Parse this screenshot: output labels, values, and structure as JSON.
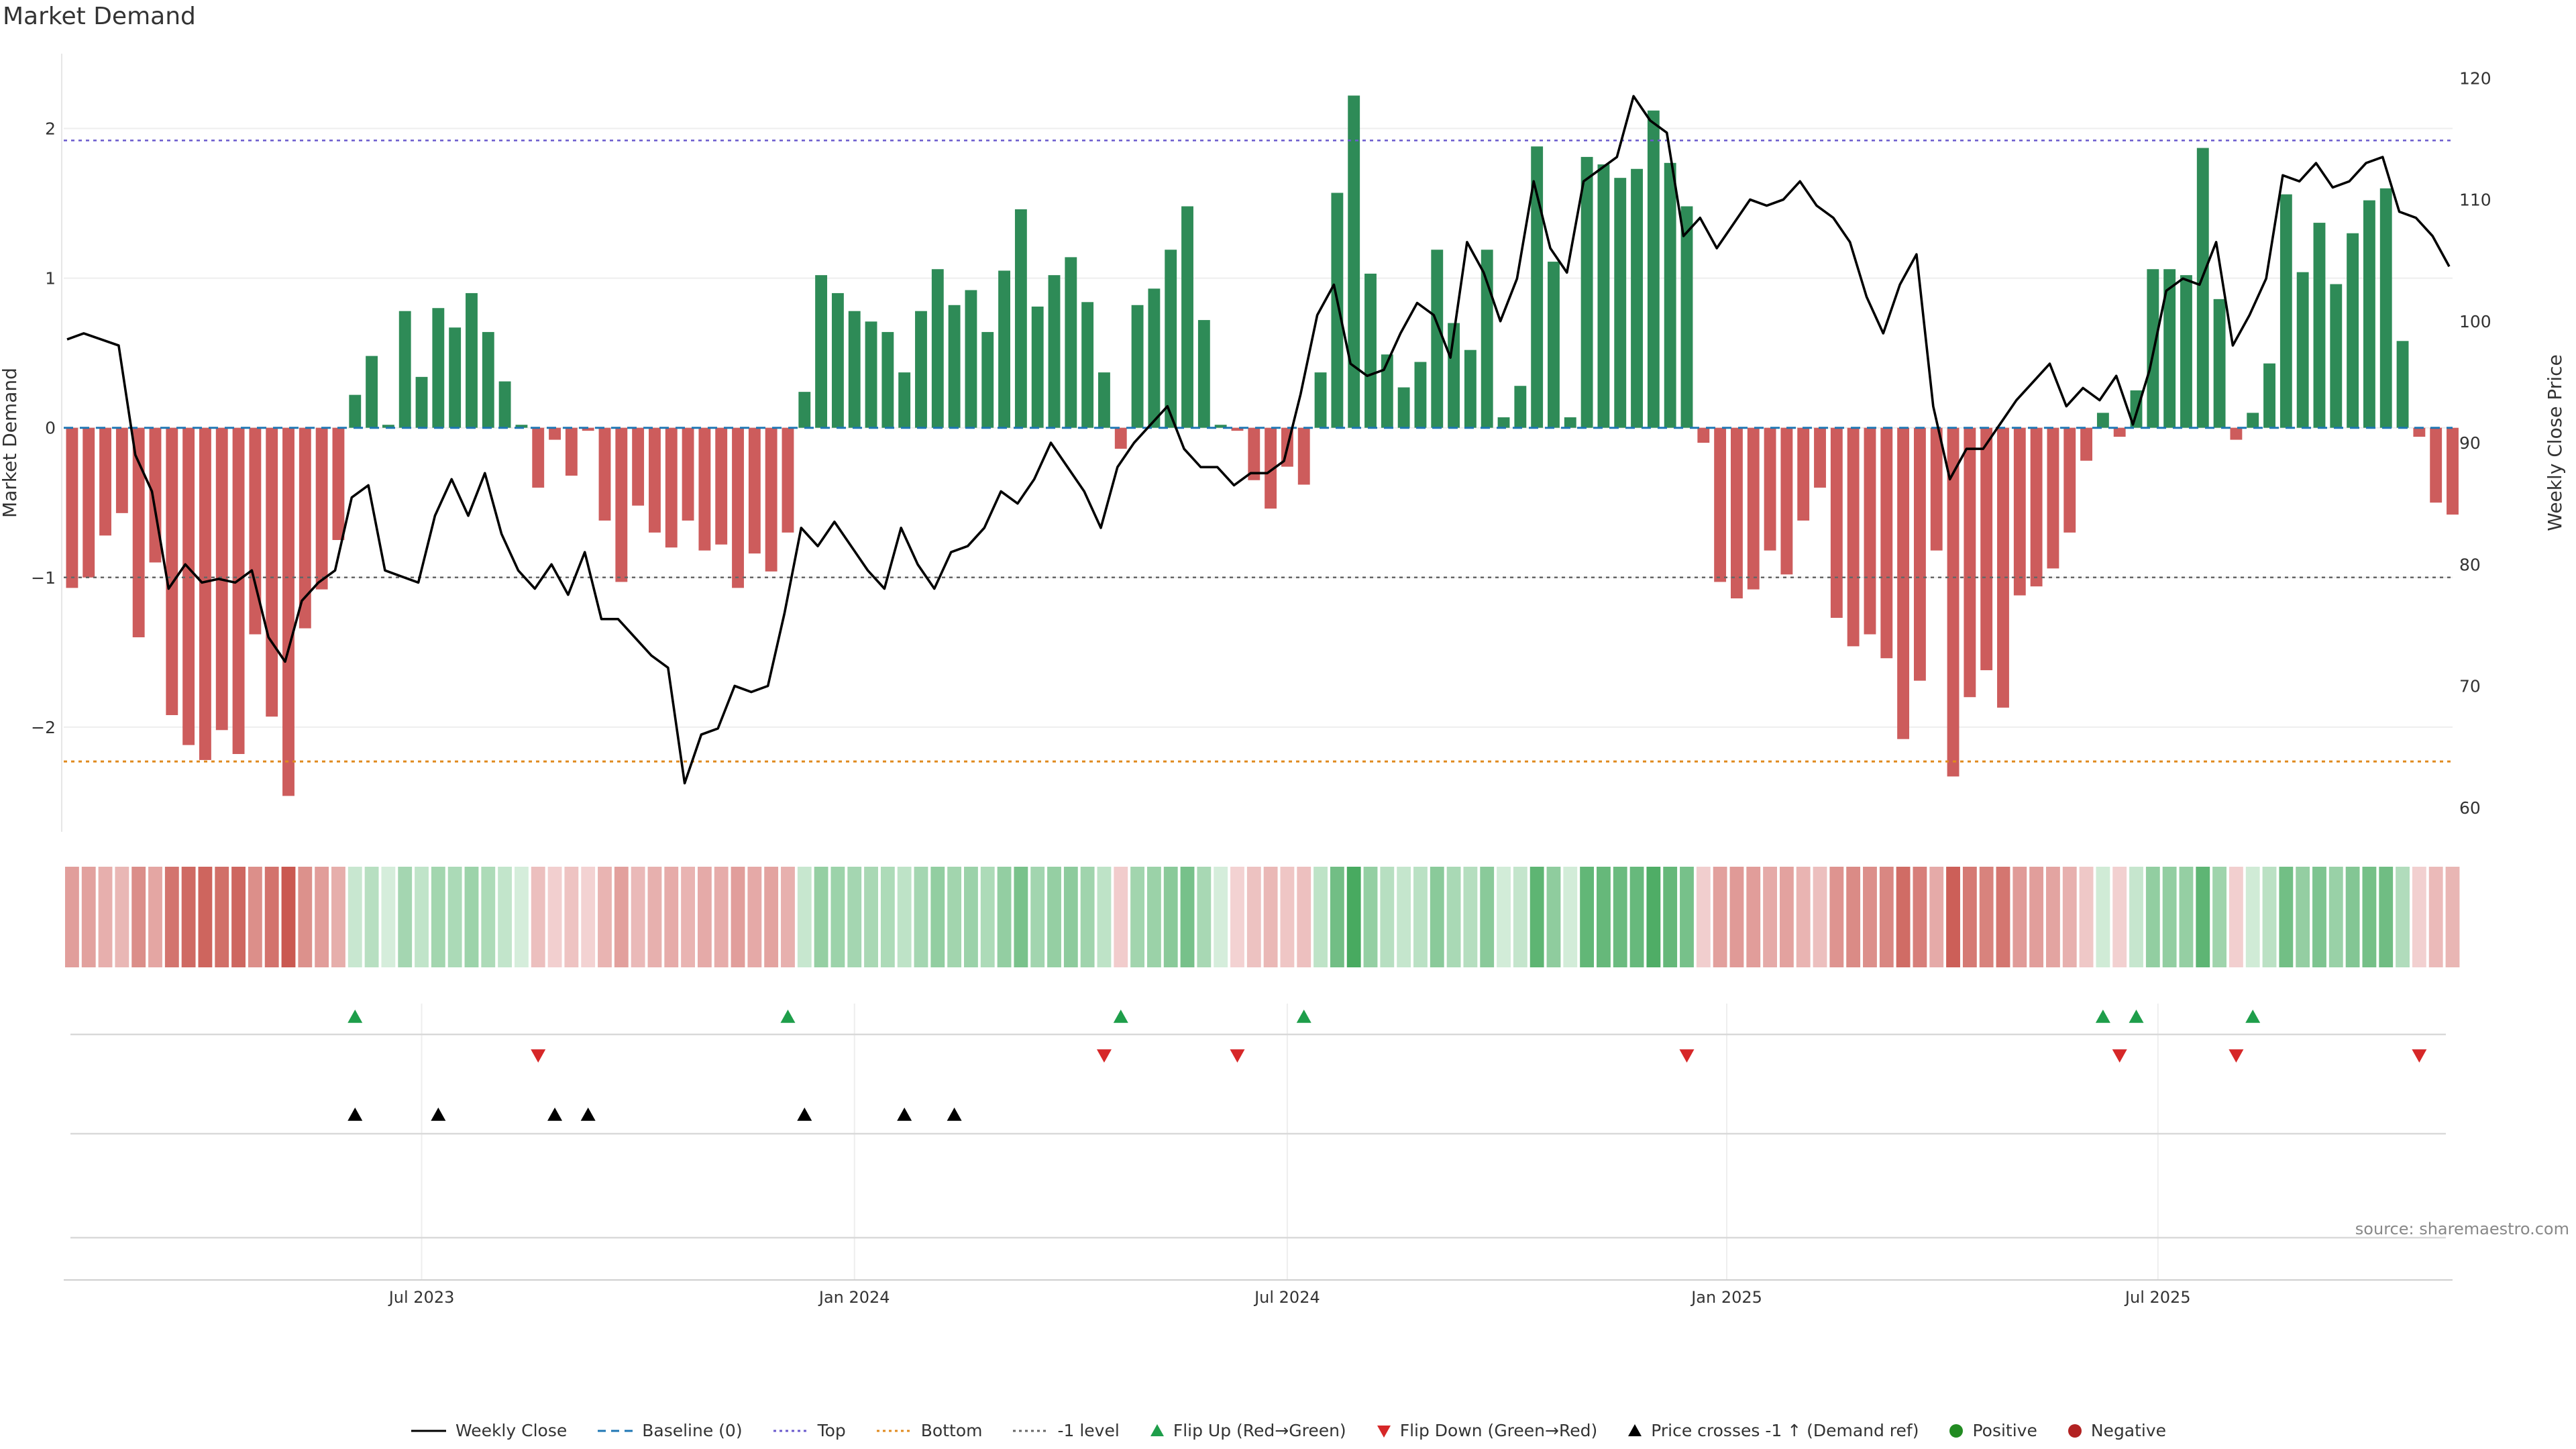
{
  "title": "Market Demand",
  "source": "source: sharemaestro.com",
  "colors": {
    "positive": "#2e8b57",
    "negative": "#cd5c5c",
    "price": "#000000",
    "top": "#6a5acd",
    "bottom": "#e08a1e",
    "minus1": "#666666",
    "baseline": "#1f77b4",
    "flip_up": "#1e9e4a",
    "flip_down": "#d62728",
    "cross": "#000000",
    "positive_dot": "#228b22",
    "negative_dot": "#b22222"
  },
  "legend": [
    {
      "label": "Weekly Close",
      "kind": "solid-line",
      "color": "#000000"
    },
    {
      "label": "Baseline (0)",
      "kind": "dashed-line",
      "color": "#1f77b4"
    },
    {
      "label": "Top",
      "kind": "dotted-line",
      "color": "#6a5acd"
    },
    {
      "label": "Bottom",
      "kind": "dotted-line",
      "color": "#e08a1e"
    },
    {
      "label": "-1 level",
      "kind": "dotted-line",
      "color": "#666666"
    },
    {
      "label": "Flip Up (Red→Green)",
      "kind": "tri-up",
      "color": "#1e9e4a"
    },
    {
      "label": "Flip Down (Green→Red)",
      "kind": "tri-down",
      "color": "#d62728"
    },
    {
      "label": "Price crosses -1 ↑ (Demand ref)",
      "kind": "tri-up",
      "color": "#000000"
    },
    {
      "label": "Positive",
      "kind": "dot",
      "color": "#228b22"
    },
    {
      "label": "Negative",
      "kind": "dot",
      "color": "#b22222"
    }
  ],
  "chart_data": {
    "type": "bar",
    "title": "Market Demand",
    "ylabel": "Market Demand",
    "y2label": "Weekly Close Price",
    "ylim": [
      -2.7,
      2.5
    ],
    "y2lim": [
      58,
      122
    ],
    "yticks": [
      -2,
      -1,
      0,
      1,
      2
    ],
    "ytick_labels": [
      "−2",
      "−1",
      "0",
      "1",
      "2"
    ],
    "y2ticks": [
      60,
      70,
      80,
      90,
      100,
      110,
      120
    ],
    "reference_lines": {
      "top": 1.92,
      "bottom": -2.23,
      "minus_one": -1.0,
      "baseline": 0
    },
    "x_range_weeks": [
      0,
      143.5
    ],
    "x_ticks": [
      {
        "week": 21.5,
        "label": "Jul 2023"
      },
      {
        "week": 47.5,
        "label": "Jan 2024"
      },
      {
        "week": 73.5,
        "label": "Jul 2024"
      },
      {
        "week": 99.9,
        "label": "Jan 2025"
      },
      {
        "week": 125.8,
        "label": "Jul 2025"
      }
    ],
    "demand": [
      -1.07,
      -1.0,
      -0.72,
      -0.57,
      -1.4,
      -0.9,
      -1.92,
      -2.12,
      -2.22,
      -2.02,
      -2.18,
      -1.38,
      -1.93,
      -2.46,
      -1.34,
      -1.08,
      -0.75,
      0.22,
      0.48,
      0.02,
      0.78,
      0.34,
      0.8,
      0.67,
      0.9,
      0.64,
      0.31,
      0.02,
      -0.4,
      -0.08,
      -0.32,
      -0.02,
      -0.62,
      -1.03,
      -0.52,
      -0.7,
      -0.8,
      -0.62,
      -0.82,
      -0.78,
      -1.07,
      -0.84,
      -0.96,
      -0.7,
      0.24,
      1.02,
      0.9,
      0.78,
      0.71,
      0.64,
      0.37,
      0.78,
      1.06,
      0.82,
      0.92,
      0.64,
      1.05,
      1.46,
      0.81,
      1.02,
      1.14,
      0.84,
      0.37,
      -0.14,
      0.82,
      0.93,
      1.19,
      1.48,
      0.72,
      0.02,
      -0.02,
      -0.35,
      -0.54,
      -0.26,
      -0.38,
      0.37,
      1.57,
      2.22,
      1.03,
      0.49,
      0.27,
      0.44,
      1.19,
      0.7,
      0.52,
      1.19,
      0.07,
      0.28,
      1.88,
      1.11,
      0.07,
      1.81,
      1.76,
      1.67,
      1.73,
      2.12,
      1.77,
      1.48,
      -0.1,
      -1.03,
      -1.14,
      -1.08,
      -0.82,
      -0.98,
      -0.62,
      -0.4,
      -1.27,
      -1.46,
      -1.38,
      -1.54,
      -2.08,
      -1.69,
      -0.82,
      -2.33,
      -1.8,
      -1.62,
      -1.87,
      -1.12,
      -1.06,
      -0.94,
      -0.7,
      -0.22,
      0.1,
      -0.06,
      0.25,
      1.06,
      1.06,
      1.02,
      1.87,
      0.86,
      -0.08,
      0.1,
      0.43,
      1.56,
      1.04,
      1.37,
      0.96,
      1.3,
      1.52,
      1.6,
      0.58,
      -0.06,
      -0.5,
      -0.58
    ],
    "price": [
      {
        "w": 0.2,
        "p": 98.5
      },
      {
        "w": 1.2,
        "p": 99.0
      },
      {
        "w": 3.3,
        "p": 98.0
      },
      {
        "w": 4.3,
        "p": 89.0
      },
      {
        "w": 5.3,
        "p": 86.0
      },
      {
        "w": 6.3,
        "p": 78.0
      },
      {
        "w": 7.3,
        "p": 80.0
      },
      {
        "w": 8.3,
        "p": 78.5
      },
      {
        "w": 9.3,
        "p": 78.8
      },
      {
        "w": 10.3,
        "p": 78.5
      },
      {
        "w": 11.3,
        "p": 79.5
      },
      {
        "w": 12.3,
        "p": 74.0
      },
      {
        "w": 13.3,
        "p": 72.0
      },
      {
        "w": 14.3,
        "p": 77.0
      },
      {
        "w": 15.3,
        "p": 78.5
      },
      {
        "w": 16.3,
        "p": 79.5
      },
      {
        "w": 17.3,
        "p": 85.5
      },
      {
        "w": 18.3,
        "p": 86.5
      },
      {
        "w": 19.3,
        "p": 79.5
      },
      {
        "w": 20.3,
        "p": 79.0
      },
      {
        "w": 21.3,
        "p": 78.5
      },
      {
        "w": 22.3,
        "p": 84.0
      },
      {
        "w": 23.3,
        "p": 87.0
      },
      {
        "w": 24.3,
        "p": 84.0
      },
      {
        "w": 25.3,
        "p": 87.5
      },
      {
        "w": 26.3,
        "p": 82.5
      },
      {
        "w": 27.3,
        "p": 79.5
      },
      {
        "w": 28.3,
        "p": 78.0
      },
      {
        "w": 29.3,
        "p": 80.0
      },
      {
        "w": 30.3,
        "p": 77.5
      },
      {
        "w": 31.3,
        "p": 81.0
      },
      {
        "w": 32.3,
        "p": 75.5
      },
      {
        "w": 33.3,
        "p": 75.5
      },
      {
        "w": 34.3,
        "p": 74.0
      },
      {
        "w": 35.3,
        "p": 72.5
      },
      {
        "w": 36.3,
        "p": 71.5
      },
      {
        "w": 37.3,
        "p": 62.0
      },
      {
        "w": 38.3,
        "p": 66.0
      },
      {
        "w": 39.3,
        "p": 66.5
      },
      {
        "w": 40.3,
        "p": 70.0
      },
      {
        "w": 41.3,
        "p": 69.5
      },
      {
        "w": 42.3,
        "p": 70.0
      },
      {
        "w": 43.3,
        "p": 76.0
      },
      {
        "w": 44.3,
        "p": 83.0
      },
      {
        "w": 45.3,
        "p": 81.5
      },
      {
        "w": 46.3,
        "p": 83.5
      },
      {
        "w": 47.3,
        "p": 81.5
      },
      {
        "w": 48.3,
        "p": 79.5
      },
      {
        "w": 49.3,
        "p": 78.0
      },
      {
        "w": 50.3,
        "p": 83.0
      },
      {
        "w": 51.3,
        "p": 80.0
      },
      {
        "w": 52.3,
        "p": 78.0
      },
      {
        "w": 53.3,
        "p": 81.0
      },
      {
        "w": 54.3,
        "p": 81.5
      },
      {
        "w": 55.3,
        "p": 83.0
      },
      {
        "w": 56.3,
        "p": 86.0
      },
      {
        "w": 57.3,
        "p": 85.0
      },
      {
        "w": 58.3,
        "p": 87.0
      },
      {
        "w": 59.3,
        "p": 90.0
      },
      {
        "w": 60.3,
        "p": 88.0
      },
      {
        "w": 61.3,
        "p": 86.0
      },
      {
        "w": 62.3,
        "p": 83.0
      },
      {
        "w": 63.3,
        "p": 88.0
      },
      {
        "w": 64.3,
        "p": 90.0
      },
      {
        "w": 65.3,
        "p": 91.5
      },
      {
        "w": 66.3,
        "p": 93.0
      },
      {
        "w": 67.3,
        "p": 89.5
      },
      {
        "w": 68.3,
        "p": 88.0
      },
      {
        "w": 69.3,
        "p": 88.0
      },
      {
        "w": 70.3,
        "p": 86.5
      },
      {
        "w": 71.3,
        "p": 87.5
      },
      {
        "w": 72.3,
        "p": 87.5
      },
      {
        "w": 73.3,
        "p": 88.5
      },
      {
        "w": 74.3,
        "p": 94.0
      },
      {
        "w": 75.3,
        "p": 100.5
      },
      {
        "w": 76.3,
        "p": 103.0
      },
      {
        "w": 77.3,
        "p": 96.5
      },
      {
        "w": 78.3,
        "p": 95.5
      },
      {
        "w": 79.3,
        "p": 96.0
      },
      {
        "w": 80.3,
        "p": 99.0
      },
      {
        "w": 81.3,
        "p": 101.5
      },
      {
        "w": 82.3,
        "p": 100.5
      },
      {
        "w": 83.3,
        "p": 97.0
      },
      {
        "w": 84.3,
        "p": 106.5
      },
      {
        "w": 85.3,
        "p": 104.0
      },
      {
        "w": 86.3,
        "p": 100.0
      },
      {
        "w": 87.3,
        "p": 103.5
      },
      {
        "w": 88.3,
        "p": 111.5
      },
      {
        "w": 89.3,
        "p": 106.0
      },
      {
        "w": 90.3,
        "p": 104.0
      },
      {
        "w": 91.3,
        "p": 111.5
      },
      {
        "w": 92.3,
        "p": 112.5
      },
      {
        "w": 93.3,
        "p": 113.5
      },
      {
        "w": 94.3,
        "p": 118.5
      },
      {
        "w": 95.3,
        "p": 116.5
      },
      {
        "w": 96.3,
        "p": 115.5
      },
      {
        "w": 97.3,
        "p": 107.0
      },
      {
        "w": 98.3,
        "p": 108.5
      },
      {
        "w": 99.3,
        "p": 106.0
      },
      {
        "w": 100.3,
        "p": 108.0
      },
      {
        "w": 101.3,
        "p": 110.0
      },
      {
        "w": 102.3,
        "p": 109.5
      },
      {
        "w": 103.3,
        "p": 110.0
      },
      {
        "w": 104.3,
        "p": 111.5
      },
      {
        "w": 105.3,
        "p": 109.5
      },
      {
        "w": 106.3,
        "p": 108.5
      },
      {
        "w": 107.3,
        "p": 106.5
      },
      {
        "w": 108.3,
        "p": 102.0
      },
      {
        "w": 109.3,
        "p": 99.0
      },
      {
        "w": 110.3,
        "p": 103.0
      },
      {
        "w": 111.3,
        "p": 105.5
      },
      {
        "w": 112.3,
        "p": 93.0
      },
      {
        "w": 113.3,
        "p": 87.0
      },
      {
        "w": 114.3,
        "p": 89.5
      },
      {
        "w": 115.3,
        "p": 89.5
      },
      {
        "w": 116.3,
        "p": 91.5
      },
      {
        "w": 117.3,
        "p": 93.5
      },
      {
        "w": 118.3,
        "p": 95.0
      },
      {
        "w": 119.3,
        "p": 96.5
      },
      {
        "w": 120.3,
        "p": 93.0
      },
      {
        "w": 121.3,
        "p": 94.5
      },
      {
        "w": 122.3,
        "p": 93.5
      },
      {
        "w": 123.3,
        "p": 95.5
      },
      {
        "w": 124.3,
        "p": 91.5
      },
      {
        "w": 125.3,
        "p": 96.0
      },
      {
        "w": 126.3,
        "p": 102.5
      },
      {
        "w": 127.3,
        "p": 103.5
      },
      {
        "w": 128.3,
        "p": 103.0
      },
      {
        "w": 129.3,
        "p": 106.5
      },
      {
        "w": 130.3,
        "p": 98.0
      },
      {
        "w": 131.3,
        "p": 100.5
      },
      {
        "w": 132.3,
        "p": 103.5
      },
      {
        "w": 133.3,
        "p": 112.0
      },
      {
        "w": 134.3,
        "p": 111.5
      },
      {
        "w": 135.3,
        "p": 113.0
      },
      {
        "w": 136.3,
        "p": 111.0
      },
      {
        "w": 137.3,
        "p": 111.5
      },
      {
        "w": 138.3,
        "p": 113.0
      },
      {
        "w": 139.3,
        "p": 113.5
      },
      {
        "w": 140.3,
        "p": 109.0
      },
      {
        "w": 141.3,
        "p": 108.5
      },
      {
        "w": 142.3,
        "p": 107.0
      },
      {
        "w": 143.3,
        "p": 104.5
      }
    ],
    "events": {
      "flip_up_weeks": [
        17,
        43,
        63,
        74,
        122,
        124,
        131
      ],
      "flip_down_weeks": [
        28,
        62,
        70,
        97,
        123,
        130,
        141
      ],
      "price_cross_weeks": [
        17,
        22,
        29,
        31,
        44,
        50,
        53
      ]
    }
  }
}
